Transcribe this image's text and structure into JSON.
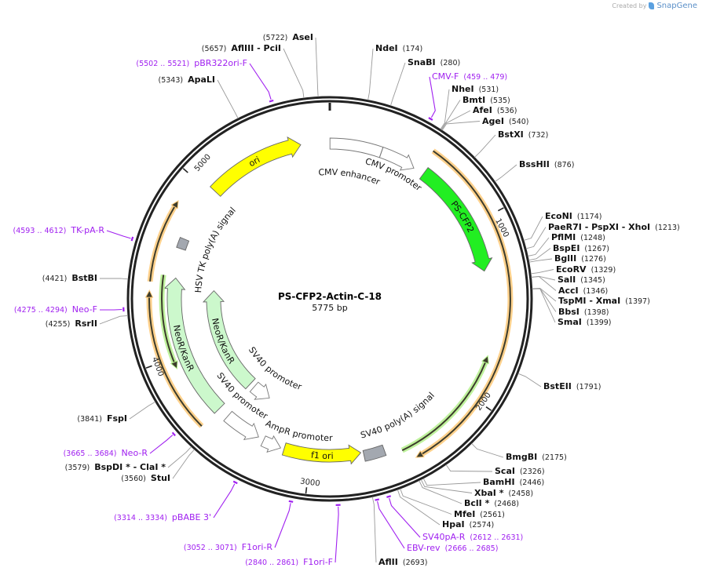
{
  "title": "PS-CFP2-Actin-C-18",
  "length": "5775 bp",
  "total_bp": 5775,
  "watermark": {
    "created_by": "Created by",
    "brand": "SnapGene"
  },
  "ticks": [
    {
      "bp": 1000,
      "label": "1000"
    },
    {
      "bp": 2000,
      "label": "2000"
    },
    {
      "bp": 3000,
      "label": "3000"
    },
    {
      "bp": 4000,
      "label": "4000"
    },
    {
      "bp": 5000,
      "label": "5000"
    }
  ],
  "features": [
    {
      "name": "CMV enhancer",
      "start": 1,
      "end": 310,
      "dir": 0,
      "color": "#ffffff"
    },
    {
      "name": "CMV promoter",
      "start": 311,
      "end": 525,
      "dir": 1,
      "color": "#ffffff"
    },
    {
      "name": "PS-CFP2",
      "start": 590,
      "end": 1280,
      "dir": 1,
      "color": "#22ee22"
    },
    {
      "name": "",
      "start": 560,
      "end": 2430,
      "dir": 1,
      "color": "#ffc978"
    },
    {
      "name": "",
      "start": 1762,
      "end": 2478,
      "dir": -1,
      "color": "#b4f08c"
    },
    {
      "name": "SV40 poly(A) signal",
      "start": 2570,
      "end": 2690,
      "dir": 0,
      "color": "#a3a8b0"
    },
    {
      "name": "f1 ori",
      "start": 2705,
      "end": 3159,
      "dir": -1,
      "color": "#ffff00"
    },
    {
      "name": "AmpR promoter",
      "start": 3180,
      "end": 3290,
      "dir": -1,
      "color": "#ffffff"
    },
    {
      "name": "SV40 promoter",
      "start": 3325,
      "end": 3545,
      "dir": -1,
      "color": "#ffffff"
    },
    {
      "name": "NeoR/KanR",
      "start": 3612,
      "end": 4455,
      "dir": 1,
      "color": "#ccf8cc"
    },
    {
      "name": "SV40 promoter",
      "start": 3390,
      "end": 3540,
      "dir": -1,
      "color": "#ffffff"
    },
    {
      "name": "NeoR/KanR",
      "start": 3578,
      "end": 4396,
      "dir": 1,
      "color": "#ccf8cc"
    },
    {
      "name": "",
      "start": 3612,
      "end": 4375,
      "dir": 1,
      "color": "#ffc978"
    },
    {
      "name": "",
      "start": 4420,
      "end": 4860,
      "dir": 1,
      "color": "#ffc978"
    },
    {
      "name": "",
      "start": 3937,
      "end": 4463,
      "dir": -1,
      "color": "#b4f08c"
    },
    {
      "name": "HSV TK poly(A) signal",
      "start": 4630,
      "end": 4690,
      "dir": 0,
      "color": "#a3a8b0"
    },
    {
      "name": "ori",
      "start": 5024,
      "end": 5604,
      "dir": 1,
      "color": "#ffff00"
    }
  ],
  "enzymes": [
    {
      "name": "NdeI",
      "pos": "(174)",
      "bp": 174
    },
    {
      "name": "SnaBI",
      "pos": "(280)",
      "bp": 280
    },
    {
      "name": "NheI",
      "pos": "(531)",
      "bp": 531
    },
    {
      "name": "BmtI",
      "pos": "(535)",
      "bp": 535
    },
    {
      "name": "AfeI",
      "pos": "(536)",
      "bp": 536
    },
    {
      "name": "AgeI",
      "pos": "(540)",
      "bp": 540
    },
    {
      "name": "BstXI",
      "pos": "(732)",
      "bp": 732
    },
    {
      "name": "BssHII",
      "pos": "(876)",
      "bp": 876
    },
    {
      "name": "EcoNI",
      "pos": "(1174)",
      "bp": 1174
    },
    {
      "name": "PaeR7I   - PspXI   - XhoI",
      "pos": "(1213)",
      "bp": 1213
    },
    {
      "name": "PflMI",
      "pos": "(1248)",
      "bp": 1248
    },
    {
      "name": "BspEI",
      "pos": "(1267)",
      "bp": 1267
    },
    {
      "name": "BglII",
      "pos": "(1276)",
      "bp": 1276
    },
    {
      "name": "EcoRV",
      "pos": "(1329)",
      "bp": 1329
    },
    {
      "name": "SalI",
      "pos": "(1345)",
      "bp": 1345
    },
    {
      "name": "AccI",
      "pos": "(1346)",
      "bp": 1346
    },
    {
      "name": "TspMI   - XmaI",
      "pos": "(1397)",
      "bp": 1397
    },
    {
      "name": "BbsI",
      "pos": "(1398)",
      "bp": 1398
    },
    {
      "name": "SmaI",
      "pos": "(1399)",
      "bp": 1399
    },
    {
      "name": "BstEII",
      "pos": "(1791)",
      "bp": 1791
    },
    {
      "name": "BmgBI",
      "pos": "(2175)",
      "bp": 2175
    },
    {
      "name": "ScaI",
      "pos": "(2326)",
      "bp": 2326
    },
    {
      "name": "BamHI",
      "pos": "(2446)",
      "bp": 2446
    },
    {
      "name": "XbaI *",
      "pos": "(2458)",
      "bp": 2458
    },
    {
      "name": "BclI *",
      "pos": "(2468)",
      "bp": 2468
    },
    {
      "name": "MfeI",
      "pos": "(2561)",
      "bp": 2561
    },
    {
      "name": "HpaI",
      "pos": "(2574)",
      "bp": 2574
    },
    {
      "name": "AflII",
      "pos": "(2693)",
      "bp": 2693
    },
    {
      "name": "StuI",
      "pos": "(3560)",
      "bp": 3560
    },
    {
      "name": "BspDI *  - ClaI *",
      "pos": "(3579)",
      "bp": 3579
    },
    {
      "name": "FspI",
      "pos": "(3841)",
      "bp": 3841
    },
    {
      "name": "RsrII",
      "pos": "(4255)",
      "bp": 4255
    },
    {
      "name": "BstBI",
      "pos": "(4421)",
      "bp": 4421
    },
    {
      "name": "ApaLI",
      "pos": "(5343)",
      "bp": 5343
    },
    {
      "name": "AflIII   - PciI",
      "pos": "(5657)",
      "bp": 5657
    },
    {
      "name": "AseI",
      "pos": "(5722)",
      "bp": 5722
    }
  ],
  "primers": [
    {
      "name": "CMV-F",
      "range": "(459 .. 479)",
      "start": 459,
      "end": 479
    },
    {
      "name": "SV40pA-R",
      "range": "(2612 .. 2631)",
      "start": 2612,
      "end": 2631
    },
    {
      "name": "EBV-rev",
      "range": "(2666 .. 2685)",
      "start": 2666,
      "end": 2685
    },
    {
      "name": "F1ori-F",
      "range": "(2840 .. 2861)",
      "start": 2840,
      "end": 2861
    },
    {
      "name": "F1ori-R",
      "range": "(3052 .. 3071)",
      "start": 3052,
      "end": 3071
    },
    {
      "name": "pBABE 3'",
      "range": "(3314 .. 3334)",
      "start": 3314,
      "end": 3334
    },
    {
      "name": "Neo-R",
      "range": "(3665 .. 3684)",
      "start": 3665,
      "end": 3684
    },
    {
      "name": "Neo-F",
      "range": "(4275 .. 4294)",
      "start": 4275,
      "end": 4294
    },
    {
      "name": "TK-pA-R",
      "range": "(4593 .. 4612)",
      "start": 4593,
      "end": 4612
    },
    {
      "name": "pBR322ori-F",
      "range": "(5502 .. 5521)",
      "start": 5502,
      "end": 5521
    }
  ]
}
